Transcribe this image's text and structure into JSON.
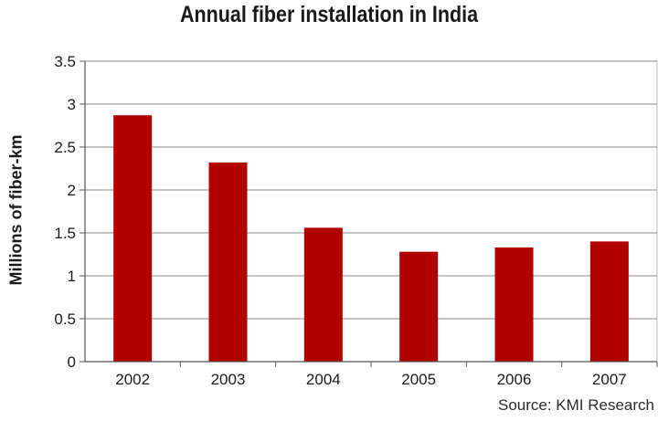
{
  "chart_data": {
    "type": "bar",
    "title": "Annual fiber installation in India",
    "ylabel": "Millions of fiber-km",
    "xlabel": "",
    "categories": [
      "2002",
      "2003",
      "2004",
      "2005",
      "2006",
      "2007"
    ],
    "values": [
      2.87,
      2.32,
      1.56,
      1.28,
      1.33,
      1.4
    ],
    "ylim": [
      0,
      3.5
    ],
    "yticks": [
      "0",
      "0.5",
      "1",
      "1.5",
      "2",
      "2.5",
      "3",
      "3.5"
    ],
    "grid": true,
    "bar_color": "#b10000",
    "source": "Source: KMI Research"
  }
}
